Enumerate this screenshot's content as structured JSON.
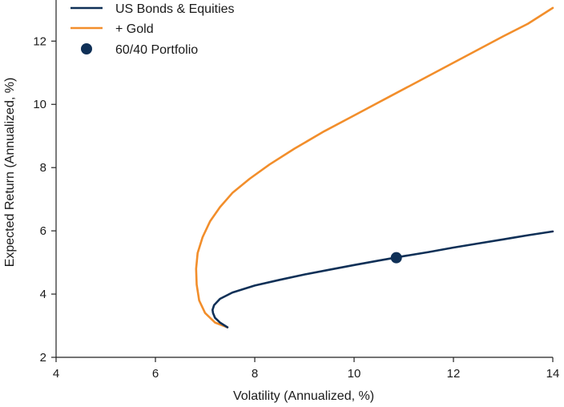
{
  "chart_data": {
    "type": "line",
    "xlabel": "Volatility (Annualized, %)",
    "ylabel": "Expected Return (Annualized, %)",
    "xlim": [
      4,
      14
    ],
    "ylim": [
      2,
      13.3
    ],
    "xticks": [
      4,
      6,
      8,
      10,
      12,
      14
    ],
    "yticks": [
      2,
      4,
      6,
      8,
      10,
      12
    ],
    "grid": false,
    "legend_position": "top-left",
    "series": [
      {
        "name": "US Bonds & Equities",
        "kind": "line",
        "color": "#0f3057",
        "x": [
          7.45,
          7.3,
          7.2,
          7.16,
          7.15,
          7.18,
          7.3,
          7.55,
          8.0,
          8.5,
          9.0,
          9.5,
          10.0,
          10.5,
          11.0,
          11.5,
          12.0,
          12.5,
          13.0,
          13.5,
          14.0
        ],
        "y": [
          2.95,
          3.1,
          3.25,
          3.4,
          3.5,
          3.65,
          3.85,
          4.05,
          4.27,
          4.45,
          4.62,
          4.77,
          4.92,
          5.06,
          5.2,
          5.33,
          5.47,
          5.6,
          5.73,
          5.86,
          5.98
        ]
      },
      {
        "name": "+ Gold",
        "kind": "line",
        "color": "#f28e2b",
        "x": [
          7.45,
          7.2,
          7.0,
          6.88,
          6.83,
          6.82,
          6.85,
          6.95,
          7.1,
          7.3,
          7.55,
          7.9,
          8.3,
          8.8,
          9.4,
          10.0,
          10.6,
          11.2,
          11.8,
          12.4,
          13.0,
          13.5,
          14.0
        ],
        "y": [
          2.95,
          3.1,
          3.4,
          3.8,
          4.3,
          4.8,
          5.3,
          5.8,
          6.3,
          6.75,
          7.2,
          7.65,
          8.1,
          8.6,
          9.15,
          9.65,
          10.15,
          10.65,
          11.15,
          11.65,
          12.15,
          12.55,
          13.05
        ]
      },
      {
        "name": "60/40 Portfolio",
        "kind": "point",
        "color": "#0f3057",
        "x": [
          10.85
        ],
        "y": [
          5.15
        ]
      }
    ]
  }
}
